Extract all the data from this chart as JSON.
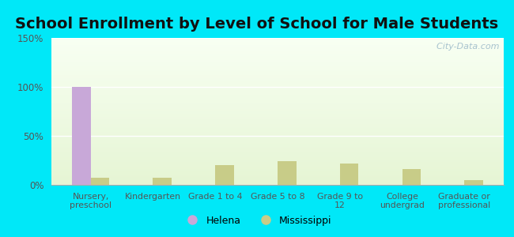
{
  "title": "School Enrollment by Level of School for Male Students",
  "categories": [
    "Nursery,\npreschool",
    "Kindergarten",
    "Grade 1 to 4",
    "Grade 5 to 8",
    "Grade 9 to\n12",
    "College\nundergrad",
    "Graduate or\nprofessional"
  ],
  "helena_values": [
    100,
    0,
    0,
    0,
    0,
    0,
    0
  ],
  "mississippi_values": [
    7,
    7,
    20,
    24,
    22,
    16,
    5
  ],
  "helena_color": "#c8a8d8",
  "mississippi_color": "#c8cc88",
  "background_outer": "#00e8f8",
  "ylim": [
    0,
    150
  ],
  "yticks": [
    0,
    50,
    100,
    150
  ],
  "ytick_labels": [
    "0%",
    "50%",
    "100%",
    "150%"
  ],
  "bar_width": 0.3,
  "title_fontsize": 14,
  "watermark": "  City-Data.com"
}
